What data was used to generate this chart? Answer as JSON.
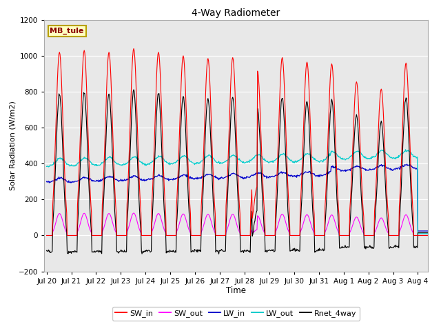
{
  "title": "4-Way Radiometer",
  "xlabel": "Time",
  "ylabel": "Solar Radiation (W/m2)",
  "ylim": [
    -200,
    1200
  ],
  "xlim_start": -0.1,
  "xlim_end": 15.4,
  "tick_labels": [
    "Jul 20",
    "Jul 21",
    "Jul 22",
    "Jul 23",
    "Jul 24",
    "Jul 25",
    "Jul 26",
    "Jul 27",
    "Jul 28",
    "Jul 29",
    "Jul 30",
    "Jul 31",
    "Aug 1",
    "Aug 2",
    "Aug 3",
    "Aug 4"
  ],
  "tick_positions": [
    0,
    1,
    2,
    3,
    4,
    5,
    6,
    7,
    8,
    9,
    10,
    11,
    12,
    13,
    14,
    15
  ],
  "yticks": [
    -200,
    0,
    200,
    400,
    600,
    800,
    1000,
    1200
  ],
  "colors": {
    "SW_in": "#ff0000",
    "SW_out": "#ff00ff",
    "LW_in": "#0000cc",
    "LW_out": "#00cccc",
    "Rnet_4way": "#000000"
  },
  "legend_labels": [
    "SW_in",
    "SW_out",
    "LW_in",
    "LW_out",
    "Rnet_4way"
  ],
  "station_label": "MB_tule",
  "fig_bg_color": "#ffffff",
  "plot_bg_color": "#e8e8e8"
}
